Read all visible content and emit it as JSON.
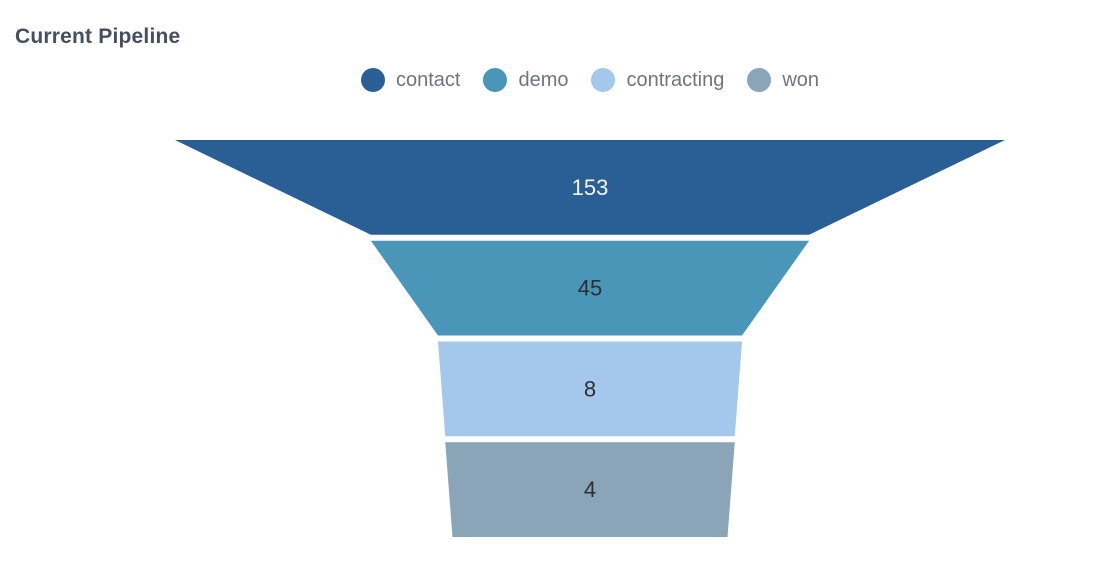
{
  "chart_data": {
    "type": "funnel",
    "title": "Current Pipeline",
    "orientation": "vertical",
    "sort": "descending",
    "background": "#ffffff",
    "legend": {
      "position": "top-center",
      "marker": "circle"
    },
    "stages": [
      {
        "label": "contact",
        "value": 153,
        "color": "#2A5F96",
        "value_label_color": "#F4F4F4"
      },
      {
        "label": "demo",
        "value": 45,
        "color": "#4A96B8",
        "value_label_color": "#2E2E2E"
      },
      {
        "label": "contracting",
        "value": 8,
        "color": "#A3C8EC",
        "value_label_color": "#2E2E2E"
      },
      {
        "label": "won",
        "value": 4,
        "color": "#8AA4B8",
        "value_label_color": "#2E2E2E"
      }
    ]
  }
}
